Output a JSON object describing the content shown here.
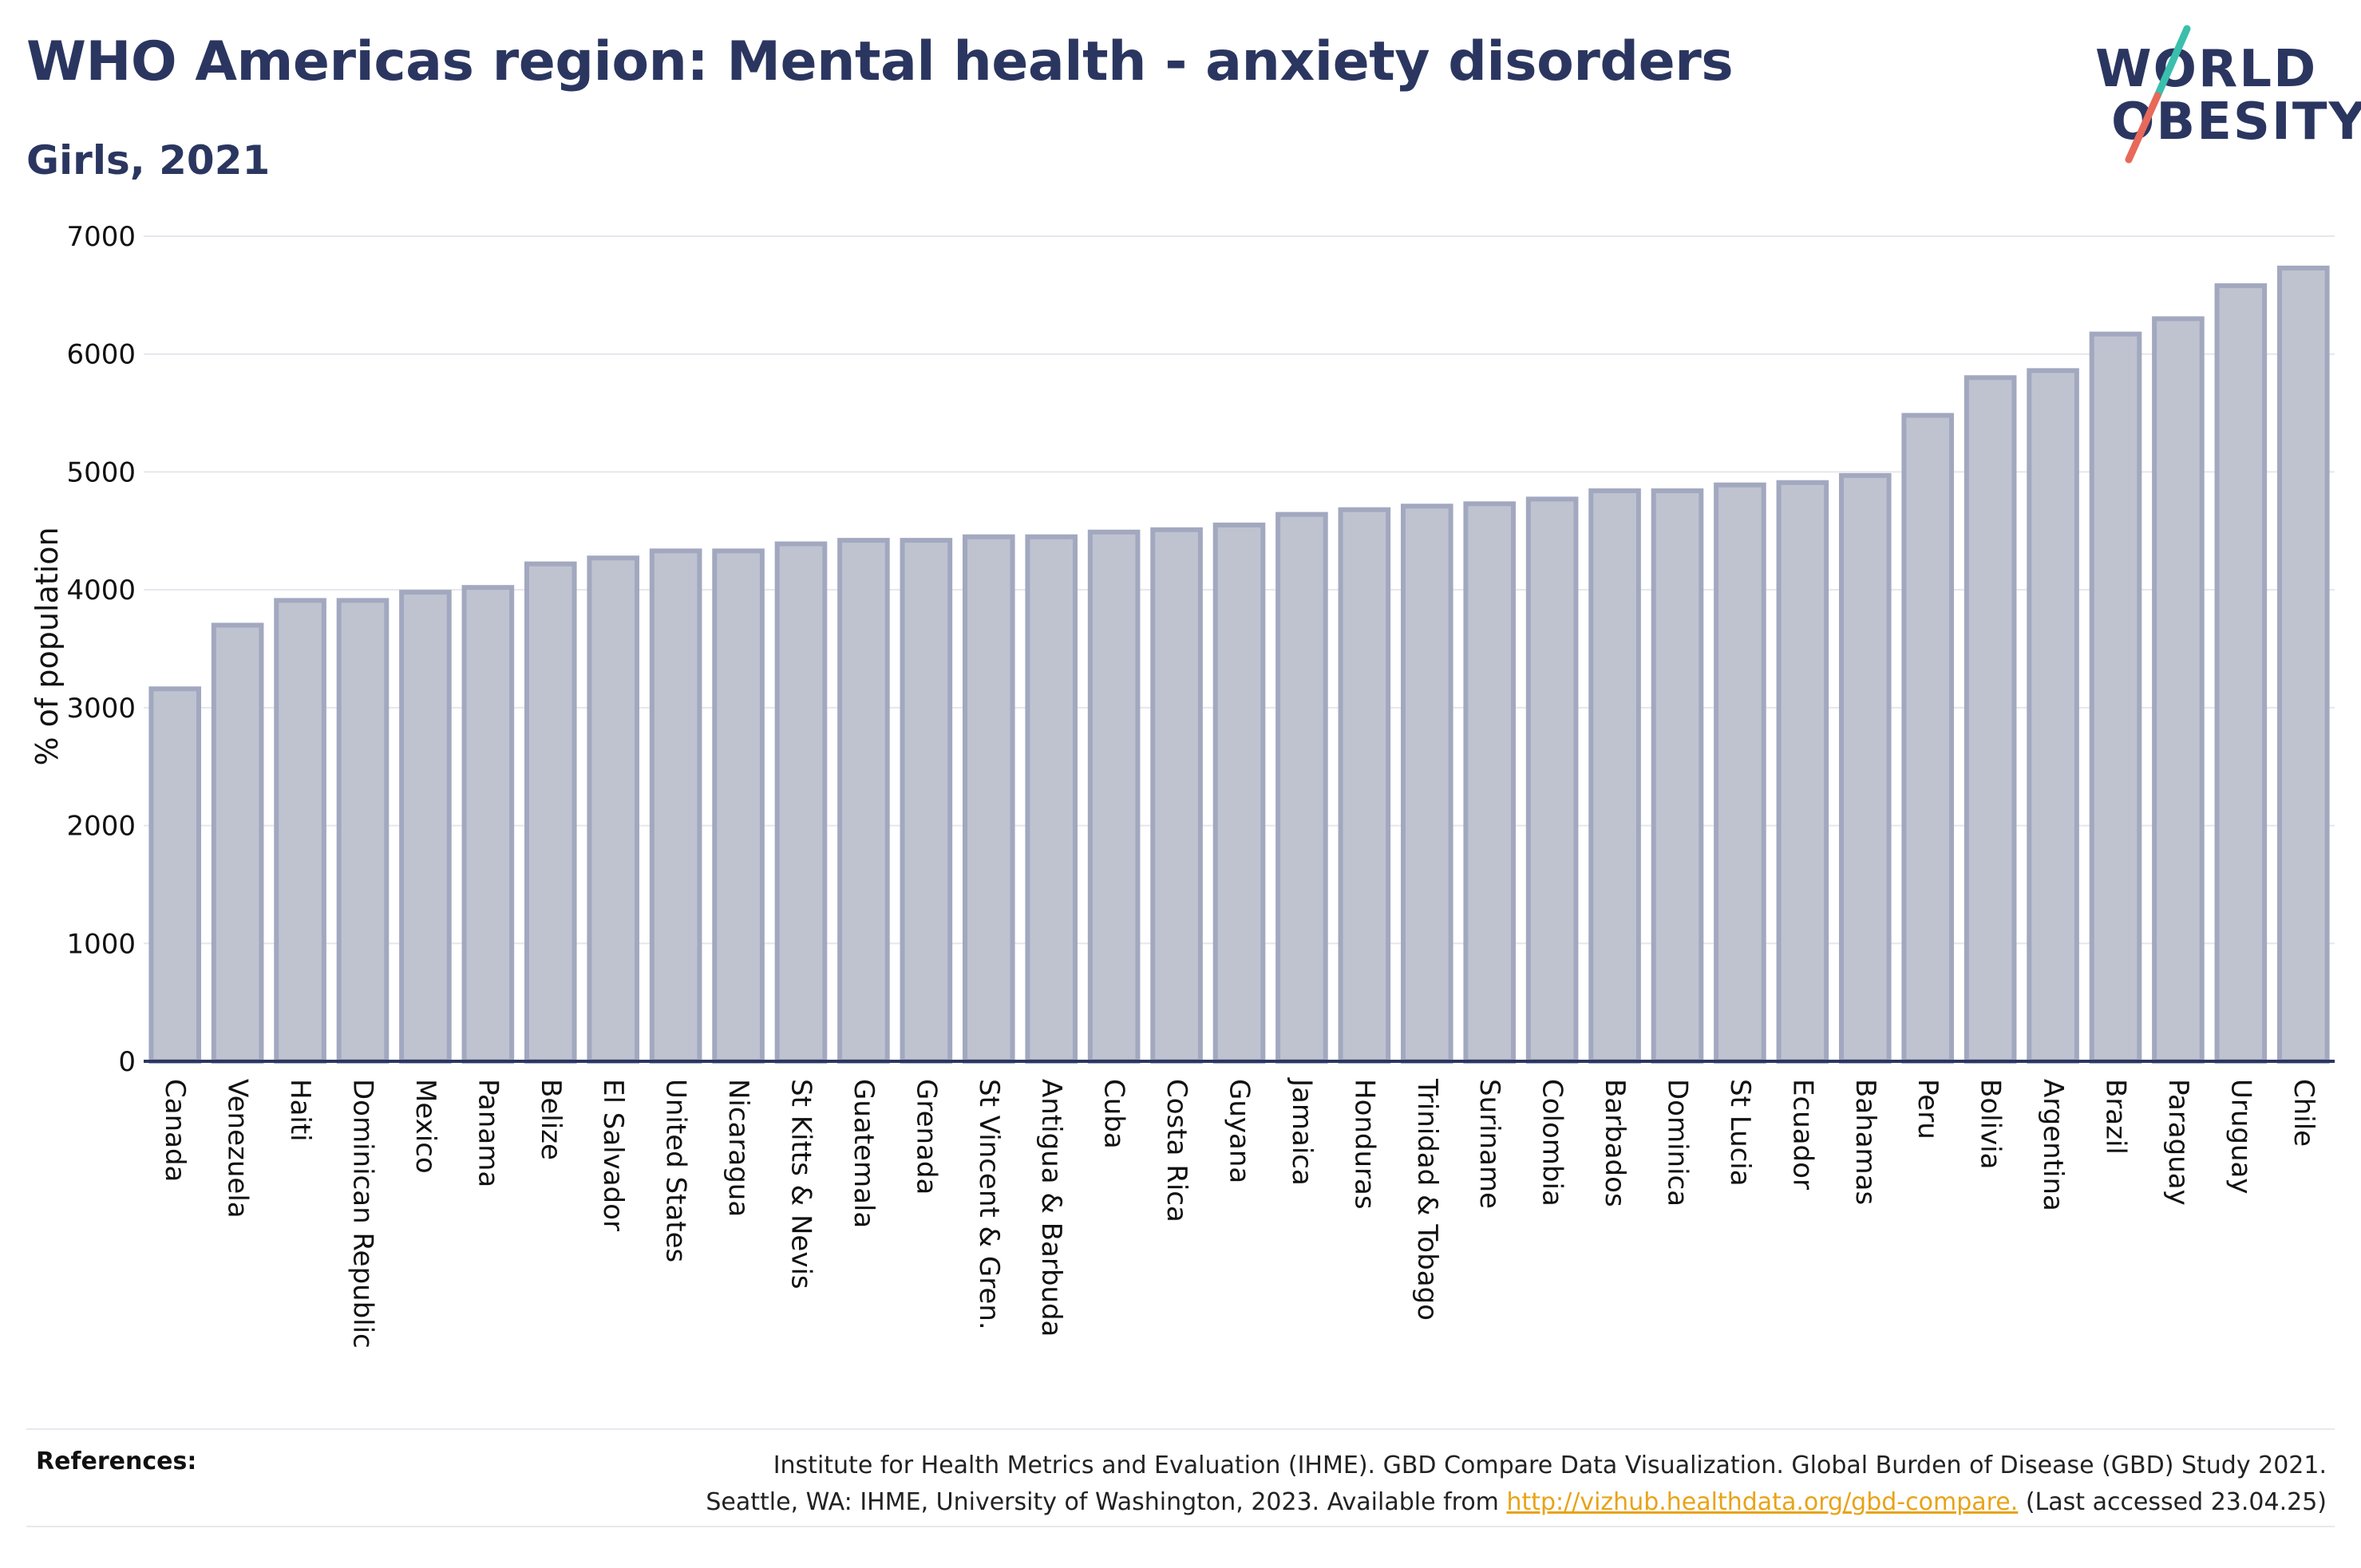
{
  "header": {
    "title": "WHO Americas region: Mental health - anxiety disorders",
    "subtitle": "Girls, 2021"
  },
  "logo": {
    "line1": "WORLD",
    "line2": "OBESITY",
    "colors": {
      "text": "#2b3660",
      "accent_teal": "#3bbfad",
      "accent_coral": "#e8695a"
    }
  },
  "chart_data": {
    "type": "bar",
    "ylabel": "% of population",
    "ylim": [
      0,
      7000
    ],
    "yticks": [
      0,
      1000,
      2000,
      3000,
      4000,
      5000,
      6000,
      7000
    ],
    "grid": true,
    "categories": [
      "Canada",
      "Venezuela",
      "Haiti",
      "Dominican Republic",
      "Mexico",
      "Panama",
      "Belize",
      "El Salvador",
      "United States",
      "Nicaragua",
      "St Kitts & Nevis",
      "Guatemala",
      "Grenada",
      "St Vincent & Gren.",
      "Antigua & Barbuda",
      "Cuba",
      "Costa Rica",
      "Guyana",
      "Jamaica",
      "Honduras",
      "Trinidad & Tobago",
      "Suriname",
      "Colombia",
      "Barbados",
      "Dominica",
      "St Lucia",
      "Ecuador",
      "Bahamas",
      "Peru",
      "Bolivia",
      "Argentina",
      "Brazil",
      "Paraguay",
      "Uruguay",
      "Chile"
    ],
    "values": [
      3160,
      3700,
      3910,
      3910,
      3980,
      4020,
      4220,
      4270,
      4330,
      4330,
      4390,
      4420,
      4420,
      4450,
      4450,
      4490,
      4510,
      4550,
      4640,
      4680,
      4710,
      4730,
      4770,
      4840,
      4840,
      4890,
      4910,
      4970,
      5480,
      5800,
      5860,
      6170,
      6300,
      6580,
      6730
    ],
    "bar_fill": "#bfc3d0",
    "bar_stroke": "#a2a8bf"
  },
  "references": {
    "label": "References:",
    "line1": "Institute for Health Metrics and Evaluation (IHME). GBD Compare Data Visualization. Global Burden of Disease (GBD) Study 2021.",
    "line2_prefix": "Seattle, WA: IHME, University of Washington, 2023. Available from ",
    "link": "http://vizhub.healthdata.org/gbd-compare.",
    "line2_suffix": " (Last accessed 23.04.25)"
  }
}
